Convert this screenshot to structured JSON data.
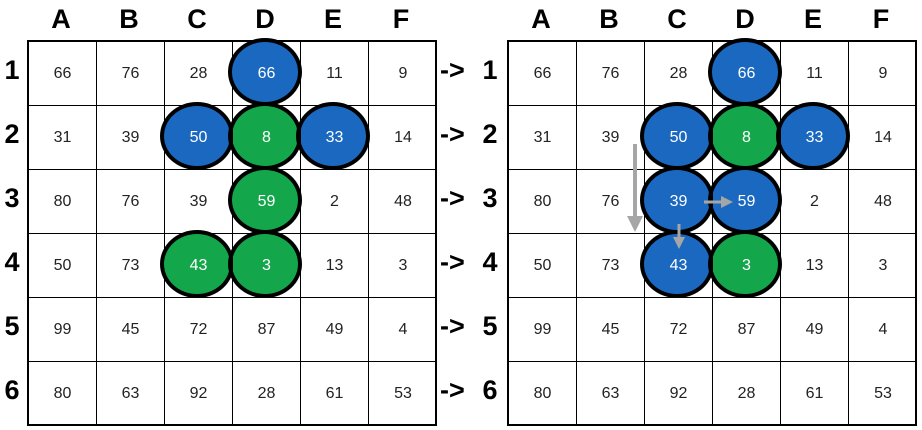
{
  "columns": [
    "A",
    "B",
    "C",
    "D",
    "E",
    "F"
  ],
  "rows": [
    "1",
    "2",
    "3",
    "4",
    "5",
    "6"
  ],
  "row_prefix": "->",
  "colors": {
    "blue": "#1a68c0",
    "green": "#13a64a",
    "arrow": "#a6a6a6"
  },
  "before": {
    "values": [
      [
        "66",
        "76",
        "28",
        "66",
        "11",
        "9"
      ],
      [
        "31",
        "39",
        "50",
        "8",
        "33",
        "14"
      ],
      [
        "80",
        "76",
        "39",
        "59",
        "2",
        "48"
      ],
      [
        "50",
        "73",
        "43",
        "3",
        "13",
        "3"
      ],
      [
        "99",
        "45",
        "72",
        "87",
        "49",
        "4"
      ],
      [
        "80",
        "63",
        "92",
        "28",
        "61",
        "53"
      ]
    ],
    "circles": [
      {
        "cell": "D1",
        "color": "blue"
      },
      {
        "cell": "C2",
        "color": "blue"
      },
      {
        "cell": "D2",
        "color": "green"
      },
      {
        "cell": "E2",
        "color": "blue"
      },
      {
        "cell": "D3",
        "color": "green"
      },
      {
        "cell": "C4",
        "color": "green"
      },
      {
        "cell": "D4",
        "color": "green"
      }
    ]
  },
  "after": {
    "values": [
      [
        "66",
        "76",
        "28",
        "66",
        "11",
        "9"
      ],
      [
        "31",
        "39",
        "50",
        "8",
        "33",
        "14"
      ],
      [
        "80",
        "76",
        "39",
        "59",
        "2",
        "48"
      ],
      [
        "50",
        "73",
        "43",
        "3",
        "13",
        "3"
      ],
      [
        "99",
        "45",
        "72",
        "87",
        "49",
        "4"
      ],
      [
        "80",
        "63",
        "92",
        "28",
        "61",
        "53"
      ]
    ],
    "circles": [
      {
        "cell": "D1",
        "color": "blue"
      },
      {
        "cell": "C2",
        "color": "blue"
      },
      {
        "cell": "D2",
        "color": "green"
      },
      {
        "cell": "E2",
        "color": "blue"
      },
      {
        "cell": "C3",
        "color": "blue"
      },
      {
        "cell": "D3",
        "color": "blue"
      },
      {
        "cell": "C4",
        "color": "blue"
      },
      {
        "cell": "D4",
        "color": "green"
      }
    ],
    "arrows": [
      {
        "description": "long arrow down from B2 to B3",
        "from": "B2",
        "to": "B3"
      },
      {
        "description": "arrow right from C3 to D3",
        "from": "C3",
        "to": "D3"
      },
      {
        "description": "arrow down from C3 to C4",
        "from": "C3",
        "to": "C4"
      }
    ]
  }
}
